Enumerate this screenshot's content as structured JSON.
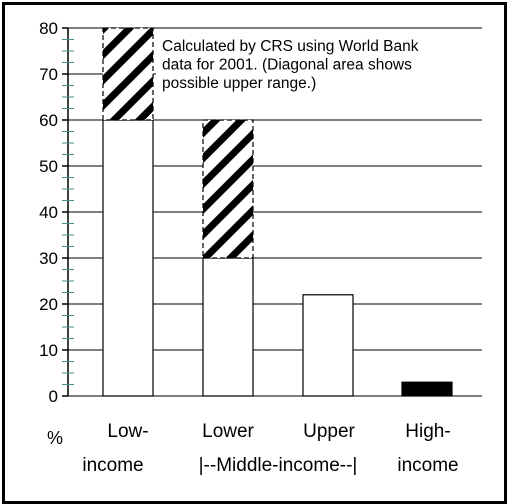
{
  "chart_data": {
    "type": "bar",
    "ylabel": "%",
    "ylim": [
      0,
      80
    ],
    "yticks": [
      0,
      10,
      20,
      30,
      40,
      50,
      60,
      70,
      80
    ],
    "minor_tick_step": 2.5,
    "grid": true,
    "categories": [
      "Low-income",
      "Lower",
      "Upper",
      "High-income"
    ],
    "category_labels_top": [
      "Low-",
      "Lower",
      "Upper",
      "High-"
    ],
    "category_labels_bottom": [
      "income",
      "|--Middle-income--|",
      "income"
    ],
    "series": [
      {
        "values": [
          60,
          30,
          22,
          3
        ]
      },
      {
        "values": [
          20,
          30,
          0,
          0
        ]
      }
    ],
    "annotation": [
      "Calculated by CRS using World Bank",
      "data for 2001.  (Diagonal area shows",
      "possible upper range.)"
    ],
    "colors": {
      "bar_fill": "#ffffff",
      "high_income_fill": "#000000",
      "hatch": "#000000",
      "grid": "#000000",
      "minor_tick": "#4a8f8a",
      "axis": "#000000"
    }
  }
}
